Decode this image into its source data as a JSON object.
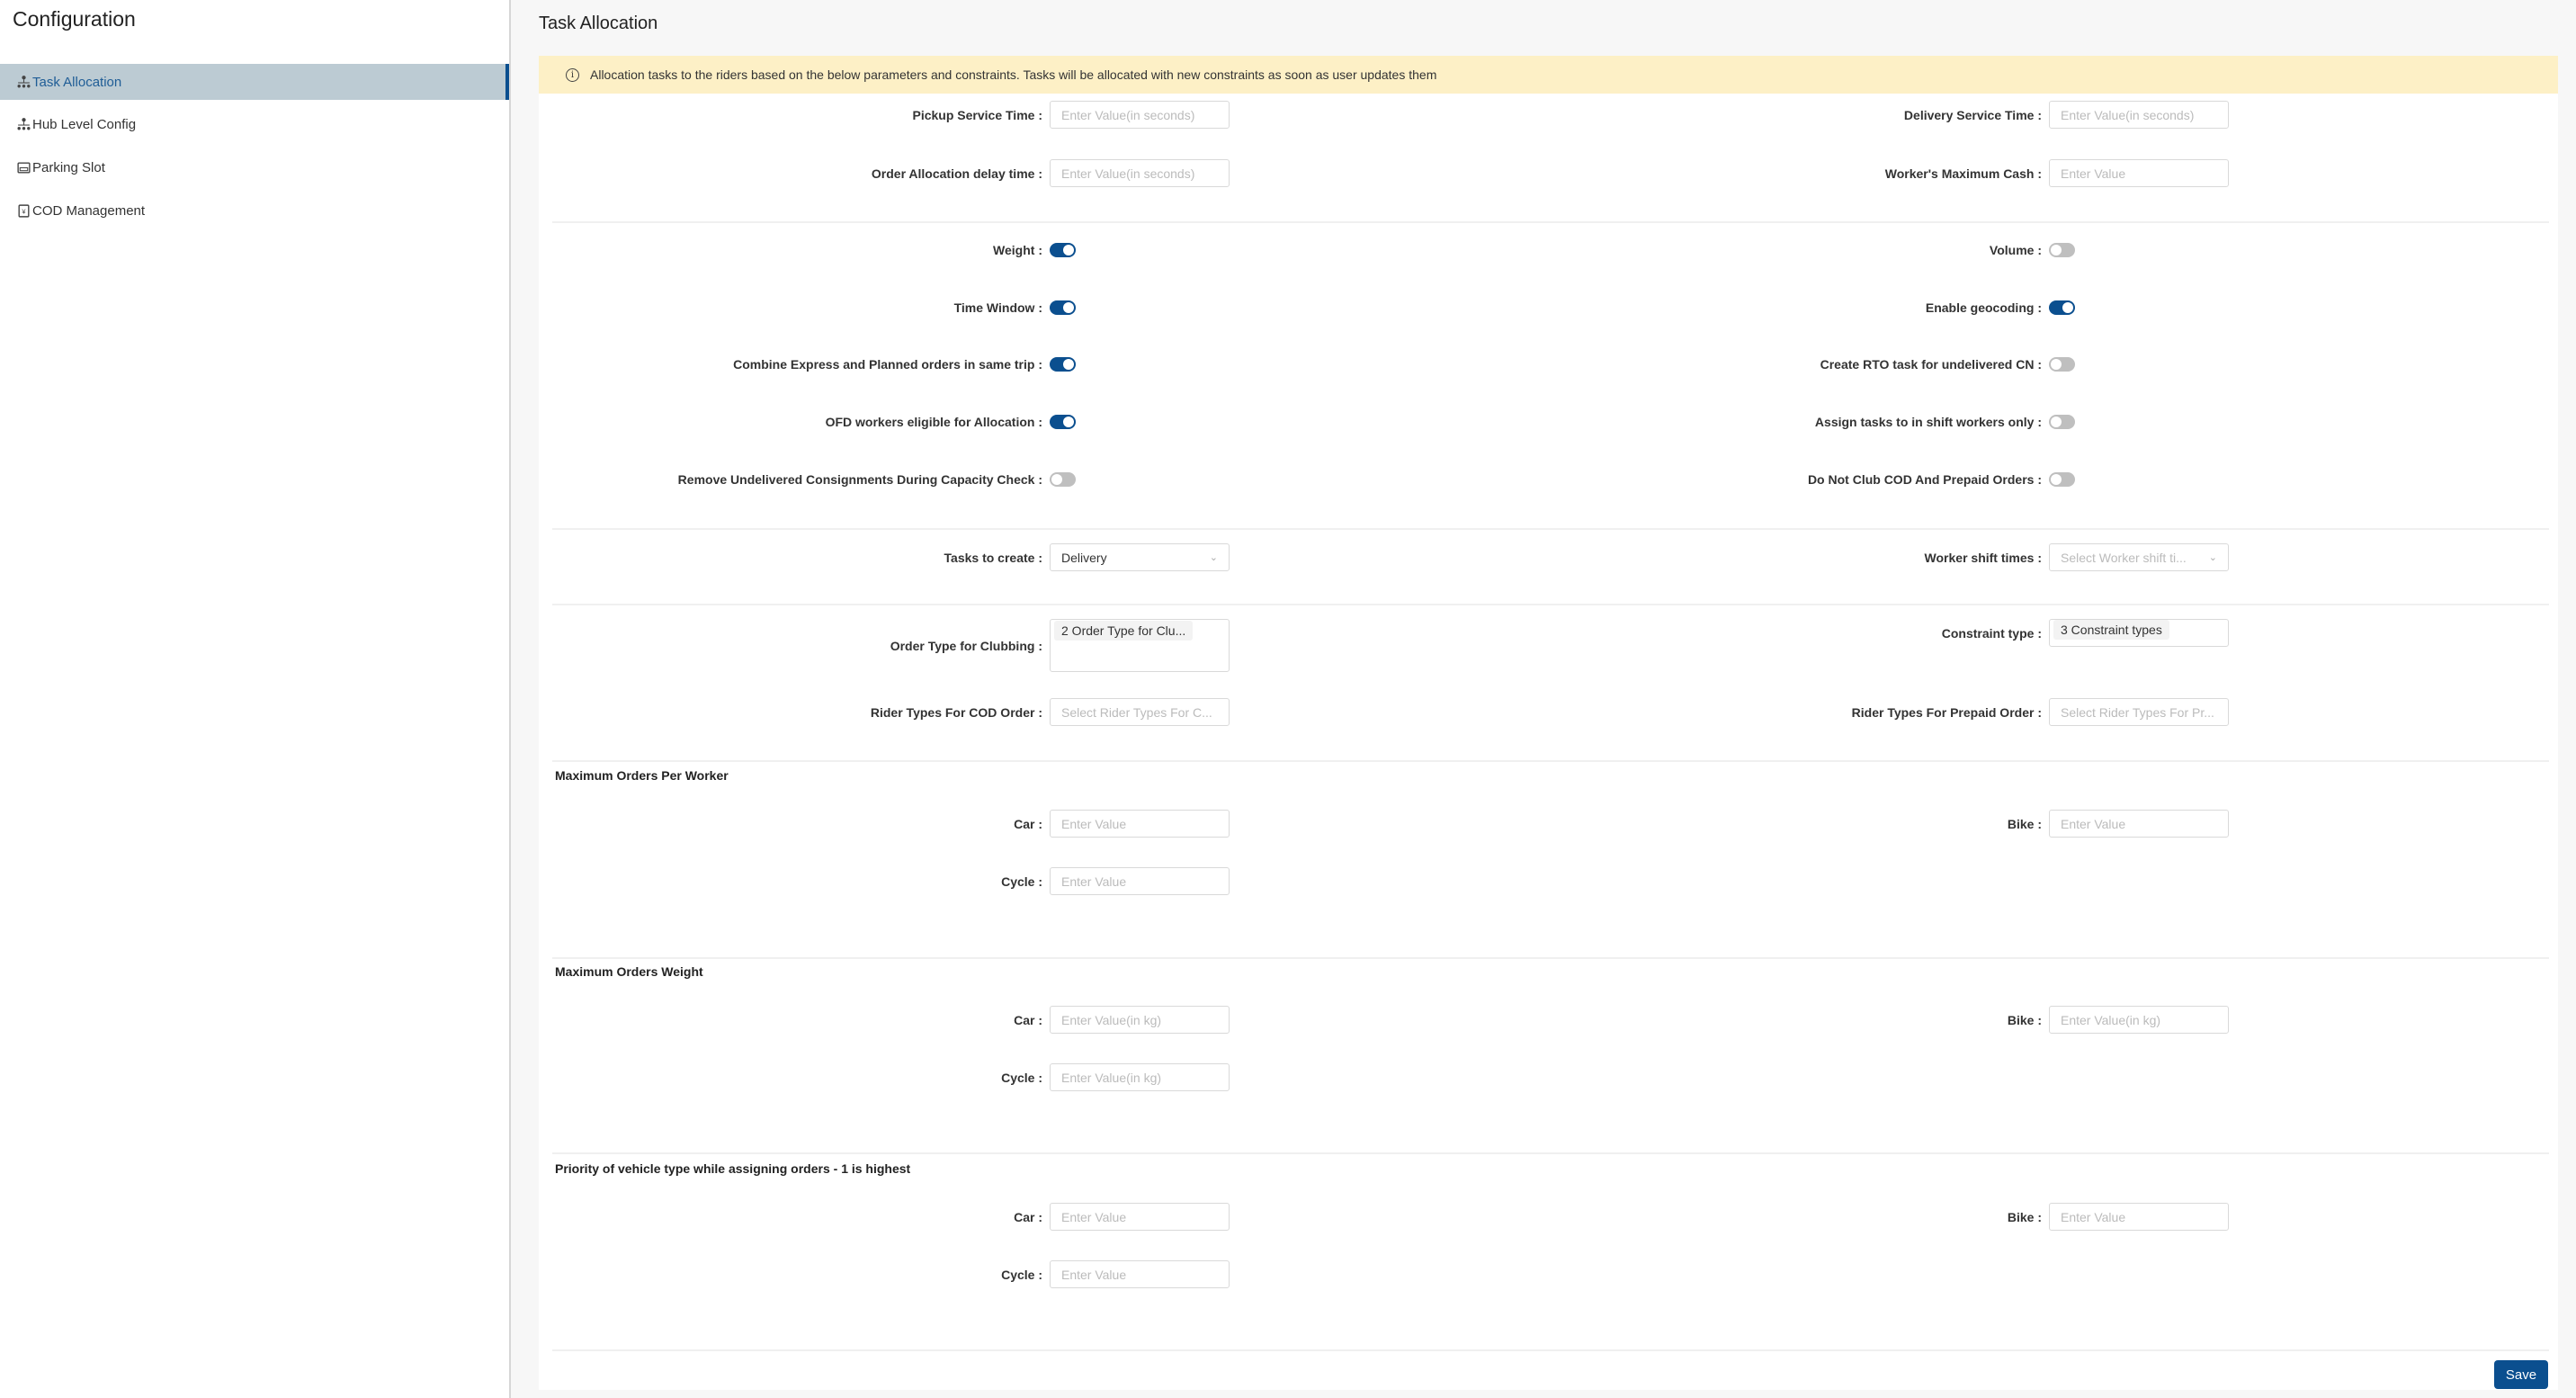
{
  "sidebar": {
    "title": "Configuration",
    "items": [
      {
        "label": "Task Allocation",
        "icon": "org-chart-icon",
        "active": true
      },
      {
        "label": "Hub Level Config",
        "icon": "org-chart-icon",
        "active": false
      },
      {
        "label": "Parking Slot",
        "icon": "parking-icon",
        "active": false
      },
      {
        "label": "COD Management",
        "icon": "cod-icon",
        "active": false
      }
    ]
  },
  "header": {
    "title": "Task Allocation"
  },
  "banner": {
    "icon": "info-icon",
    "text": "Allocation tasks to the riders based on the below parameters and constraints. Tasks will be allocated with new constraints as soon as user updates them"
  },
  "inputs": {
    "pickup": {
      "label": "Pickup Service Time",
      "placeholder": "Enter Value(in seconds)"
    },
    "delivery": {
      "label": "Delivery Service Time",
      "placeholder": "Enter Value(in seconds)"
    },
    "delay": {
      "label": "Order Allocation delay time",
      "placeholder": "Enter Value(in seconds)"
    },
    "cash": {
      "label": "Worker's Maximum Cash",
      "placeholder": "Enter Value"
    }
  },
  "toggles": [
    {
      "label": "Weight",
      "on": true
    },
    {
      "label": "Volume",
      "on": false
    },
    {
      "label": "Time Window",
      "on": true
    },
    {
      "label": "Enable geocoding",
      "on": true
    },
    {
      "label": "Combine Express and Planned orders in same trip",
      "on": true
    },
    {
      "label": "Create RTO task for undelivered CN",
      "on": false
    },
    {
      "label": "OFD workers eligible for Allocation",
      "on": true
    },
    {
      "label": "Assign tasks to in shift workers only",
      "on": false
    },
    {
      "label": "Remove Undelivered Consignments During Capacity Check",
      "on": false
    },
    {
      "label": "Do Not Club COD And Prepaid Orders",
      "on": false
    }
  ],
  "selects": {
    "tasks": {
      "label": "Tasks to create",
      "value": "Delivery"
    },
    "shift": {
      "label": "Worker shift times",
      "placeholder": "Select Worker shift ti..."
    },
    "clubbing": {
      "label": "Order Type for Clubbing",
      "tag": "2 Order Type for Clu..."
    },
    "constraint": {
      "label": "Constraint type",
      "tag": "3 Constraint types"
    },
    "cod": {
      "label": "Rider Types For COD Order",
      "placeholder": "Select Rider Types For C..."
    },
    "prepaid": {
      "label": "Rider Types For Prepaid Order",
      "placeholder": "Select Rider Types For Pr..."
    }
  },
  "sections": [
    {
      "title": "Maximum Orders Per Worker",
      "car": "Car",
      "bike": "Bike",
      "cycle": "Cycle",
      "placeholder": "Enter Value"
    },
    {
      "title": "Maximum Orders Weight",
      "car": "Car",
      "bike": "Bike",
      "cycle": "Cycle",
      "placeholder": "Enter Value(in kg)"
    },
    {
      "title": "Priority of vehicle type while assigning orders - 1 is highest",
      "car": "Car",
      "bike": "Bike",
      "cycle": "Cycle",
      "placeholder": "Enter Value"
    }
  ],
  "colon": ":",
  "save_label": "Save",
  "colors": {
    "accent": "#0b4f8f",
    "banner": "#fdf0c6",
    "active_bg": "#bccbd3"
  }
}
